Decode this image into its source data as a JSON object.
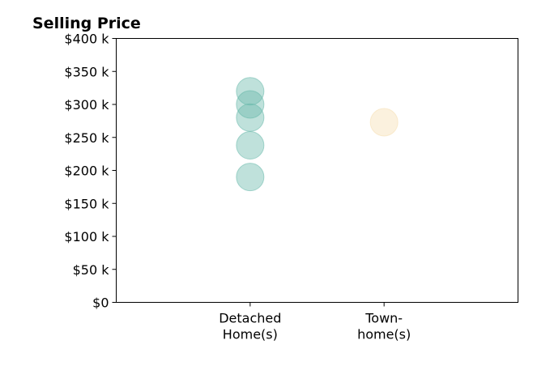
{
  "chart_data": {
    "type": "scatter",
    "title": "Selling Price",
    "xlabel": "",
    "ylabel": "",
    "categories": [
      [
        "Detached",
        "Home(s)"
      ],
      [
        "Town-",
        "home(s)"
      ]
    ],
    "xlim": [
      0,
      3
    ],
    "ylim": [
      0,
      400000
    ],
    "yticks": [
      0,
      50000,
      100000,
      150000,
      200000,
      250000,
      300000,
      350000,
      400000
    ],
    "ytick_labels": [
      "$0",
      "$50 k",
      "$100 k",
      "$150 k",
      "$200 k",
      "$250 k",
      "$300 k",
      "$350 k",
      "$400 k"
    ],
    "grid": false,
    "series": [
      {
        "category_index": 0,
        "color": "#66b8aa",
        "values": [
          320000,
          300000,
          280000,
          238000,
          190000
        ]
      },
      {
        "category_index": 1,
        "color": "#f5deb0",
        "values": [
          273000
        ]
      }
    ]
  }
}
